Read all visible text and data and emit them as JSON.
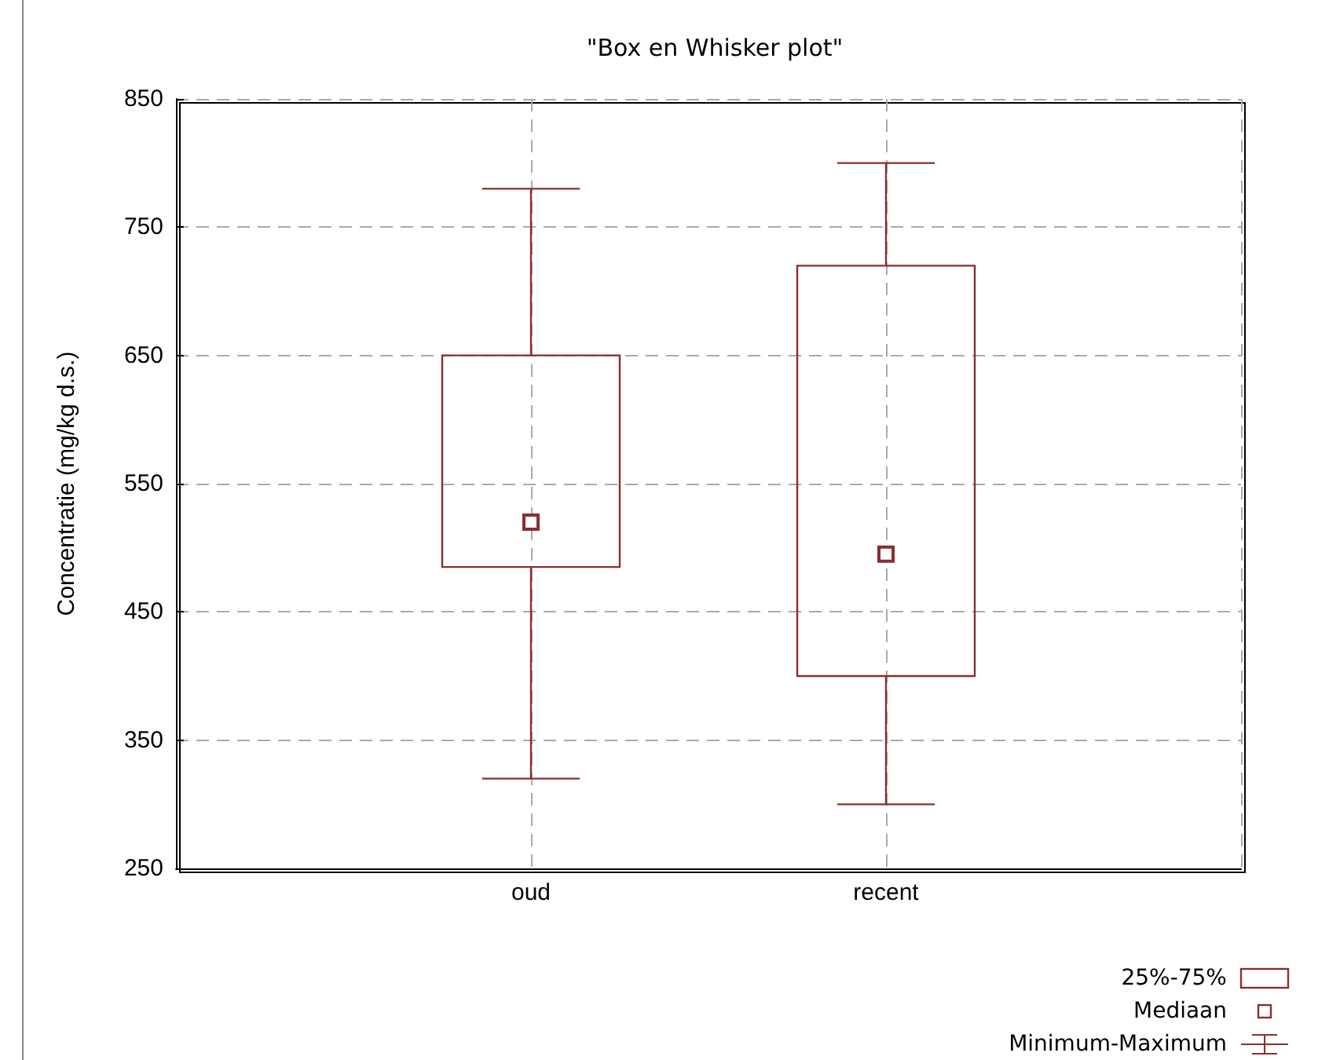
{
  "chart_data": {
    "type": "box",
    "title": "\"Box en Whisker plot\"",
    "ylabel": "Concentratie (mg/kg d.s.)",
    "categories": [
      "oud",
      "recent"
    ],
    "boxes": [
      {
        "low": 320,
        "q1": 485,
        "median": 520,
        "q3": 650,
        "high": 780
      },
      {
        "low": 300,
        "q1": 400,
        "median": 495,
        "q3": 720,
        "high": 800
      }
    ],
    "color": "#8b2e2e",
    "ylim": [
      250,
      850
    ],
    "yticks": [
      250,
      350,
      450,
      550,
      650,
      750,
      850
    ],
    "grid": true,
    "annotations": [
      "25%-75%",
      "Mediaan",
      "Minimum-Maximum"
    ]
  }
}
